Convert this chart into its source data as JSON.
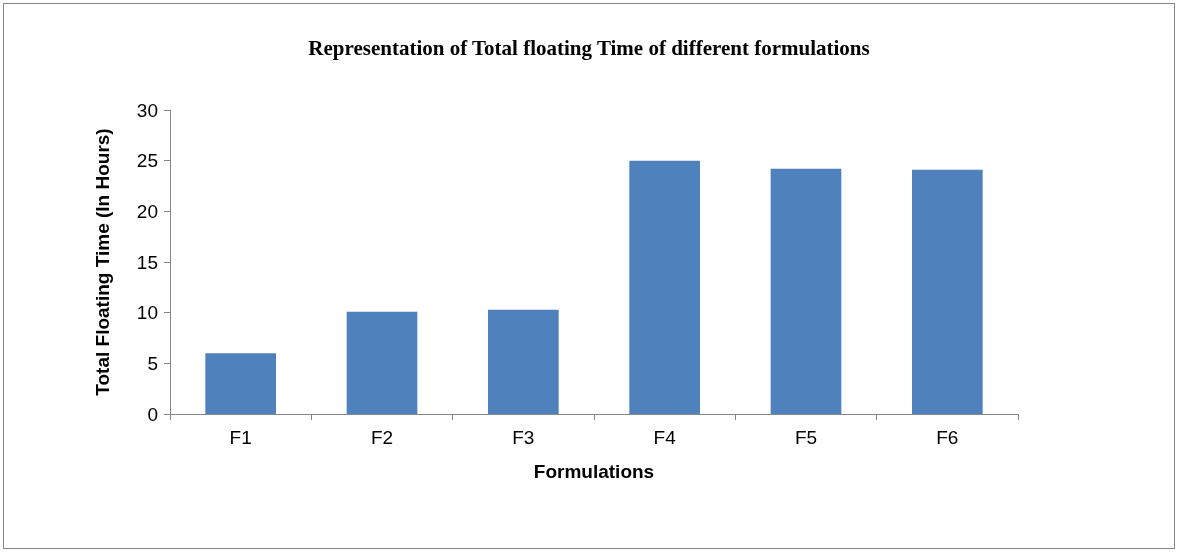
{
  "chart_data": {
    "type": "bar",
    "title": "Representation of Total floating Time of different formulations",
    "xlabel": "Formulations",
    "ylabel": "Total Floating Time (In Hours)",
    "categories": [
      "F1",
      "F2",
      "F3",
      "F4",
      "F5",
      "F6"
    ],
    "values": [
      6,
      10.1,
      10.3,
      25,
      24.2,
      24.1
    ],
    "color": "#4f81bd",
    "ylim": [
      0,
      30
    ],
    "yticks": [
      0,
      5,
      10,
      15,
      20,
      25,
      30
    ]
  }
}
